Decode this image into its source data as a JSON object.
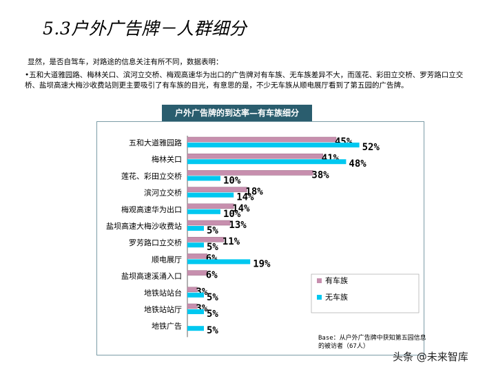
{
  "page": {
    "title": "5.3户外广告牌－人群细分",
    "intro": "显然，是否自驾车，对路途的信息关注有所不同，数据表明：",
    "bullet": "•五和大道雅园路、梅林关口、滨河立交桥、梅观高速华为出口的广告牌对有车族、无车族差异不大，而莲花、彩田立交桥、罗芳路口立交桥、盐坝高速大梅沙收费站则更主要吸引了有车族的目光，有意思的是，不少无车族从顺电展厅看到了第五园的广告牌。",
    "chart_header": "户外广告牌的到达率—有车族细分",
    "base_note": "Base：从户外广告牌中获知第五园信息的被访者（67人）",
    "watermark": "头条 @未来智库"
  },
  "colors": {
    "series1": "#c78fae",
    "series2": "#00c8f0",
    "header_bg": "#2a5d6e"
  },
  "chart_data": {
    "type": "bar",
    "orientation": "horizontal",
    "categories": [
      "五和大道雅园路",
      "梅林关口",
      "莲花、彩田立交桥",
      "滨河立交桥",
      "梅观高速华为出口",
      "盐坝高速大梅沙收费站",
      "罗芳路口立交桥",
      "顺电展厅",
      "盐坝高速溪涌入口",
      "地铁站站台",
      "地铁站站厅",
      "地铁广告"
    ],
    "series": [
      {
        "name": "有车族",
        "values": [
          45,
          41,
          38,
          18,
          14,
          13,
          11,
          6,
          6,
          3,
          3,
          null
        ],
        "labels": [
          "45%",
          "41%",
          "38%",
          "18%",
          "14%",
          "13%",
          "11%",
          "6%",
          "6%",
          "3%",
          "3%",
          ""
        ]
      },
      {
        "name": "无车族",
        "values": [
          52,
          48,
          10,
          14,
          10,
          5,
          5,
          19,
          null,
          5,
          5,
          5
        ],
        "labels": [
          "52%",
          "48%",
          "10%",
          "14%",
          "10%",
          "5%",
          "5%",
          "19%",
          "",
          "5%",
          "5%",
          "5%"
        ]
      }
    ],
    "xlim": [
      0,
      60
    ],
    "grid": false,
    "legend_position": "bottom-right"
  }
}
